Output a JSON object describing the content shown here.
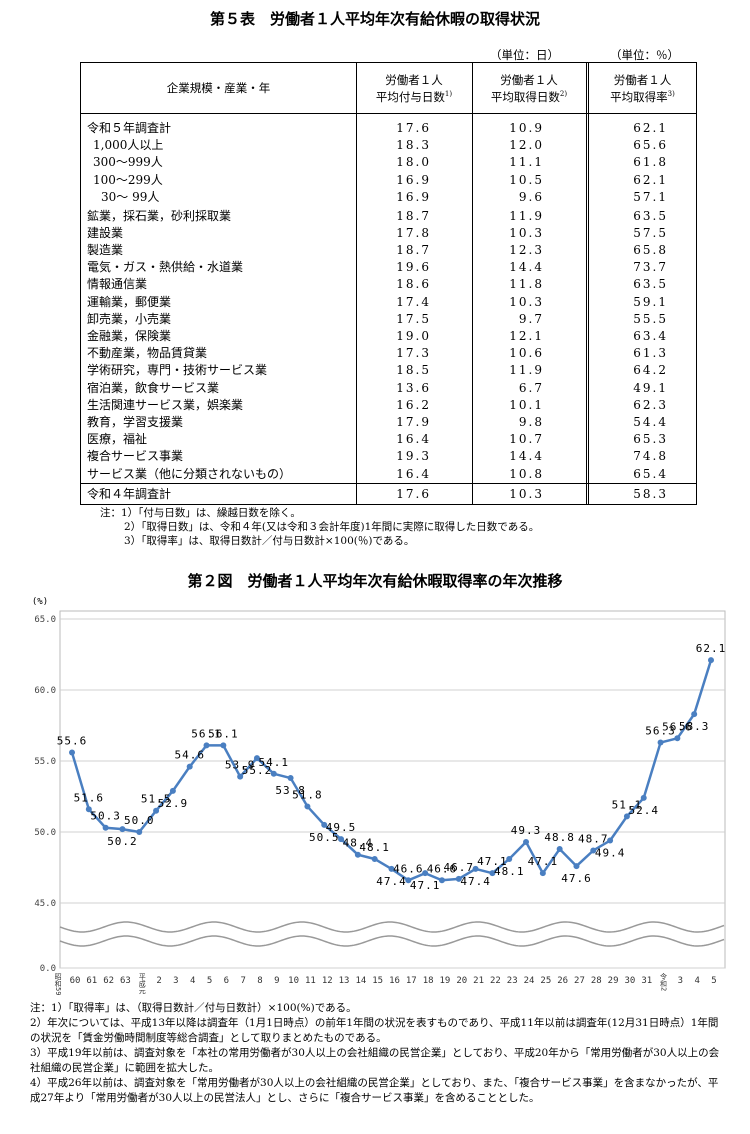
{
  "table": {
    "title": "第５表　労働者１人平均年次有給休暇の取得状況",
    "units": [
      "（単位：日）",
      "（単位：％）"
    ],
    "headers": [
      "企業規模・産業・年",
      {
        "lines": [
          "労働者１人",
          "平均付与日数"
        ],
        "note": "1)"
      },
      {
        "lines": [
          "労働者１人",
          "平均取得日数"
        ],
        "note": "2)"
      },
      {
        "lines": [
          "労働者１人",
          "平均取得率"
        ],
        "note": "3)"
      }
    ],
    "rows": [
      [
        "令和５年調査計",
        "17.6",
        "10.9",
        "62.1"
      ],
      [
        "1,000人以上",
        "18.3",
        "12.0",
        "65.6"
      ],
      [
        "300～999人",
        "18.0",
        "11.1",
        "61.8"
      ],
      [
        "100～299人",
        "16.9",
        "10.5",
        "62.1"
      ],
      [
        "30～ 99人",
        "16.9",
        "9.6",
        "57.1"
      ],
      [
        "鉱業，採石業，砂利採取業",
        "18.7",
        "11.9",
        "63.5"
      ],
      [
        "建設業",
        "17.8",
        "10.3",
        "57.5"
      ],
      [
        "製造業",
        "18.7",
        "12.3",
        "65.8"
      ],
      [
        "電気・ガス・熱供給・水道業",
        "19.6",
        "14.4",
        "73.7"
      ],
      [
        "情報通信業",
        "18.6",
        "11.8",
        "63.5"
      ],
      [
        "運輸業，郵便業",
        "17.4",
        "10.3",
        "59.1"
      ],
      [
        "卸売業，小売業",
        "17.5",
        "9.7",
        "55.5"
      ],
      [
        "金融業，保険業",
        "19.0",
        "12.1",
        "63.4"
      ],
      [
        "不動産業，物品賃貸業",
        "17.3",
        "10.6",
        "61.3"
      ],
      [
        "学術研究，専門・技術サービス業",
        "18.5",
        "11.9",
        "64.2"
      ],
      [
        "宿泊業，飲食サービス業",
        "13.6",
        "6.7",
        "49.1"
      ],
      [
        "生活関連サービス業，娯楽業",
        "16.2",
        "10.1",
        "62.3"
      ],
      [
        "教育，学習支援業",
        "17.9",
        "9.8",
        "54.4"
      ],
      [
        "医療，福祉",
        "16.4",
        "10.7",
        "65.3"
      ],
      [
        "複合サービス事業",
        "19.3",
        "14.4",
        "74.8"
      ],
      [
        "サービス業（他に分類されないもの）",
        "16.4",
        "10.8",
        "65.4"
      ],
      [
        "令和４年調査計",
        "17.6",
        "10.3",
        "58.3"
      ]
    ],
    "notes": [
      "注：1）「付与日数」は、繰越日数を除く。",
      "2）「取得日数」は、令和４年(又は令和３会計年度)1年間に実際に取得した日数である。",
      "3）「取得率」は、取得日数計／付与日数計×100(％)である。"
    ]
  },
  "chart_data": {
    "type": "line",
    "title": "第２図　労働者１人平均年次有給休暇取得率の年次推移",
    "y_label": "(%)",
    "categories": [
      "昭和59",
      "60",
      "61",
      "62",
      "63",
      "平成元",
      "2",
      "3",
      "4",
      "5",
      "6",
      "7",
      "8",
      "9",
      "10",
      "11",
      "12",
      "13",
      "14",
      "15",
      "16",
      "17",
      "18",
      "19",
      "20",
      "21",
      "22",
      "23",
      "24",
      "25",
      "26",
      "27",
      "28",
      "29",
      "30",
      "31",
      "令和2",
      "3",
      "4",
      "5"
    ],
    "values": [
      null,
      55.6,
      51.6,
      50.3,
      50.2,
      50.0,
      51.5,
      52.9,
      54.6,
      56.1,
      56.1,
      53.9,
      55.2,
      54.1,
      53.8,
      51.8,
      50.5,
      49.5,
      48.4,
      48.1,
      47.4,
      46.6,
      47.1,
      46.6,
      46.7,
      47.4,
      47.1,
      48.1,
      49.3,
      47.1,
      48.8,
      47.6,
      48.7,
      49.4,
      51.1,
      52.4,
      56.3,
      56.6,
      58.3,
      62.1
    ],
    "value_labels": [
      null,
      "55.6",
      "51.6",
      "50.3",
      "50.2",
      "50.0",
      "51.5",
      "52.9",
      "54.6",
      "56.1",
      "56.1",
      "53.9",
      "55.2",
      "54.1",
      "53.8",
      "51.8",
      "50.5",
      "49.5",
      "48.4",
      "48.1",
      "47.4",
      "46.6",
      "47.1",
      "46.6",
      "46.7",
      "47.4",
      "47.1",
      "48.1",
      "49.3",
      "47.1",
      "48.8",
      "47.6",
      "48.7",
      "49.4",
      "51.1",
      "52.4",
      "56.3",
      "56.6",
      "58.3",
      "62.1"
    ],
    "color": "#4a7fc1",
    "ylim": [
      0,
      65
    ],
    "axis_break": [
      0,
      45
    ],
    "yticks": [
      {
        "value": 0,
        "label": "0.0"
      },
      {
        "value": 45,
        "label": "45.0"
      },
      {
        "value": 50,
        "label": "50.0"
      },
      {
        "value": 55,
        "label": "55.0"
      },
      {
        "value": 60,
        "label": "60.0"
      },
      {
        "value": 65,
        "label": "65.0"
      }
    ],
    "grid": true
  },
  "figure_notes": [
    "注：1）「取得率」は、（取得日数計／付与日数計）×100(%)である。",
    "2）年次については、平成13年以降は調査年（1月1日時点）の前年1年間の状況を表すものであり、平成11年以前は調査年(12月31日時点）1年間の状況を「賃金労働時間制度等総合調査」として取りまとめたものである。",
    "3）平成19年以前は、調査対象を「本社の常用労働者が30人以上の会社組織の民営企業」としており、平成20年から「常用労働者が30人以上の会社組織の民営企業」に範囲を拡大した。",
    "4）平成26年以前は、調査対象を「常用労働者が30人以上の会社組織の民営企業」としており、また、「複合サービス事業」を含まなかったが、平成27年より「常用労働者が30人以上の民営法人」とし、さらに「複合サービス事業」を含めることとした。"
  ]
}
